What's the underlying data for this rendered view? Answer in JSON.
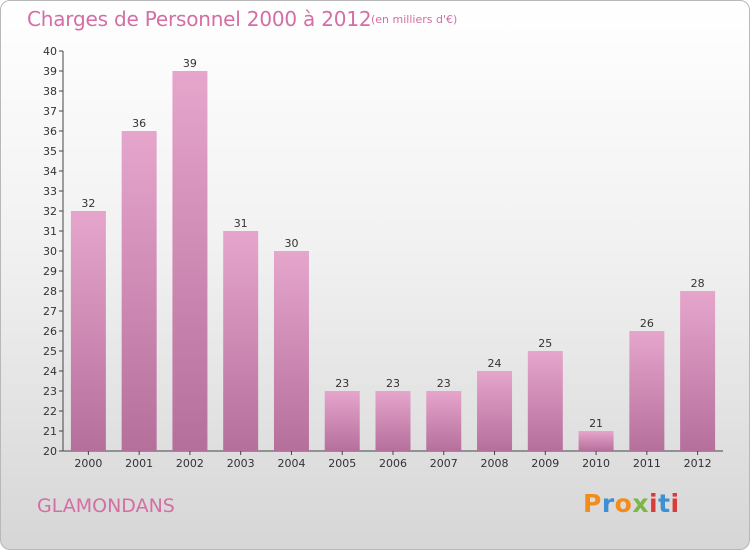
{
  "colors": {
    "accent": "#d46ea4",
    "bar_top": "#e6a6cc",
    "bar_bottom": "#b56f9b",
    "logo_letters": [
      "#f28c1b",
      "#3d8fd6",
      "#f28c1b",
      "#7ab648",
      "#d93b3b",
      "#3d8fd6"
    ]
  },
  "logo": {
    "letters": [
      "P",
      "r",
      "o",
      "x",
      "i",
      "t",
      "i"
    ]
  },
  "commune": "GLAMONDANS",
  "chart_data": {
    "type": "bar",
    "title": "Charges de Personnel 2000 à 2012",
    "subtitle": "(en milliers d'€)",
    "categories": [
      "2000",
      "2001",
      "2002",
      "2003",
      "2004",
      "2005",
      "2006",
      "2007",
      "2008",
      "2009",
      "2010",
      "2011",
      "2012"
    ],
    "values": [
      32,
      36,
      39,
      31,
      30,
      23,
      23,
      23,
      24,
      25,
      21,
      26,
      28
    ],
    "ylim": [
      20,
      40
    ],
    "yticks": [
      20,
      21,
      22,
      23,
      24,
      25,
      26,
      27,
      28,
      29,
      30,
      31,
      32,
      33,
      34,
      35,
      36,
      37,
      38,
      39,
      40
    ],
    "xlabel": "",
    "ylabel": "",
    "grid": false,
    "data_labels": true
  }
}
